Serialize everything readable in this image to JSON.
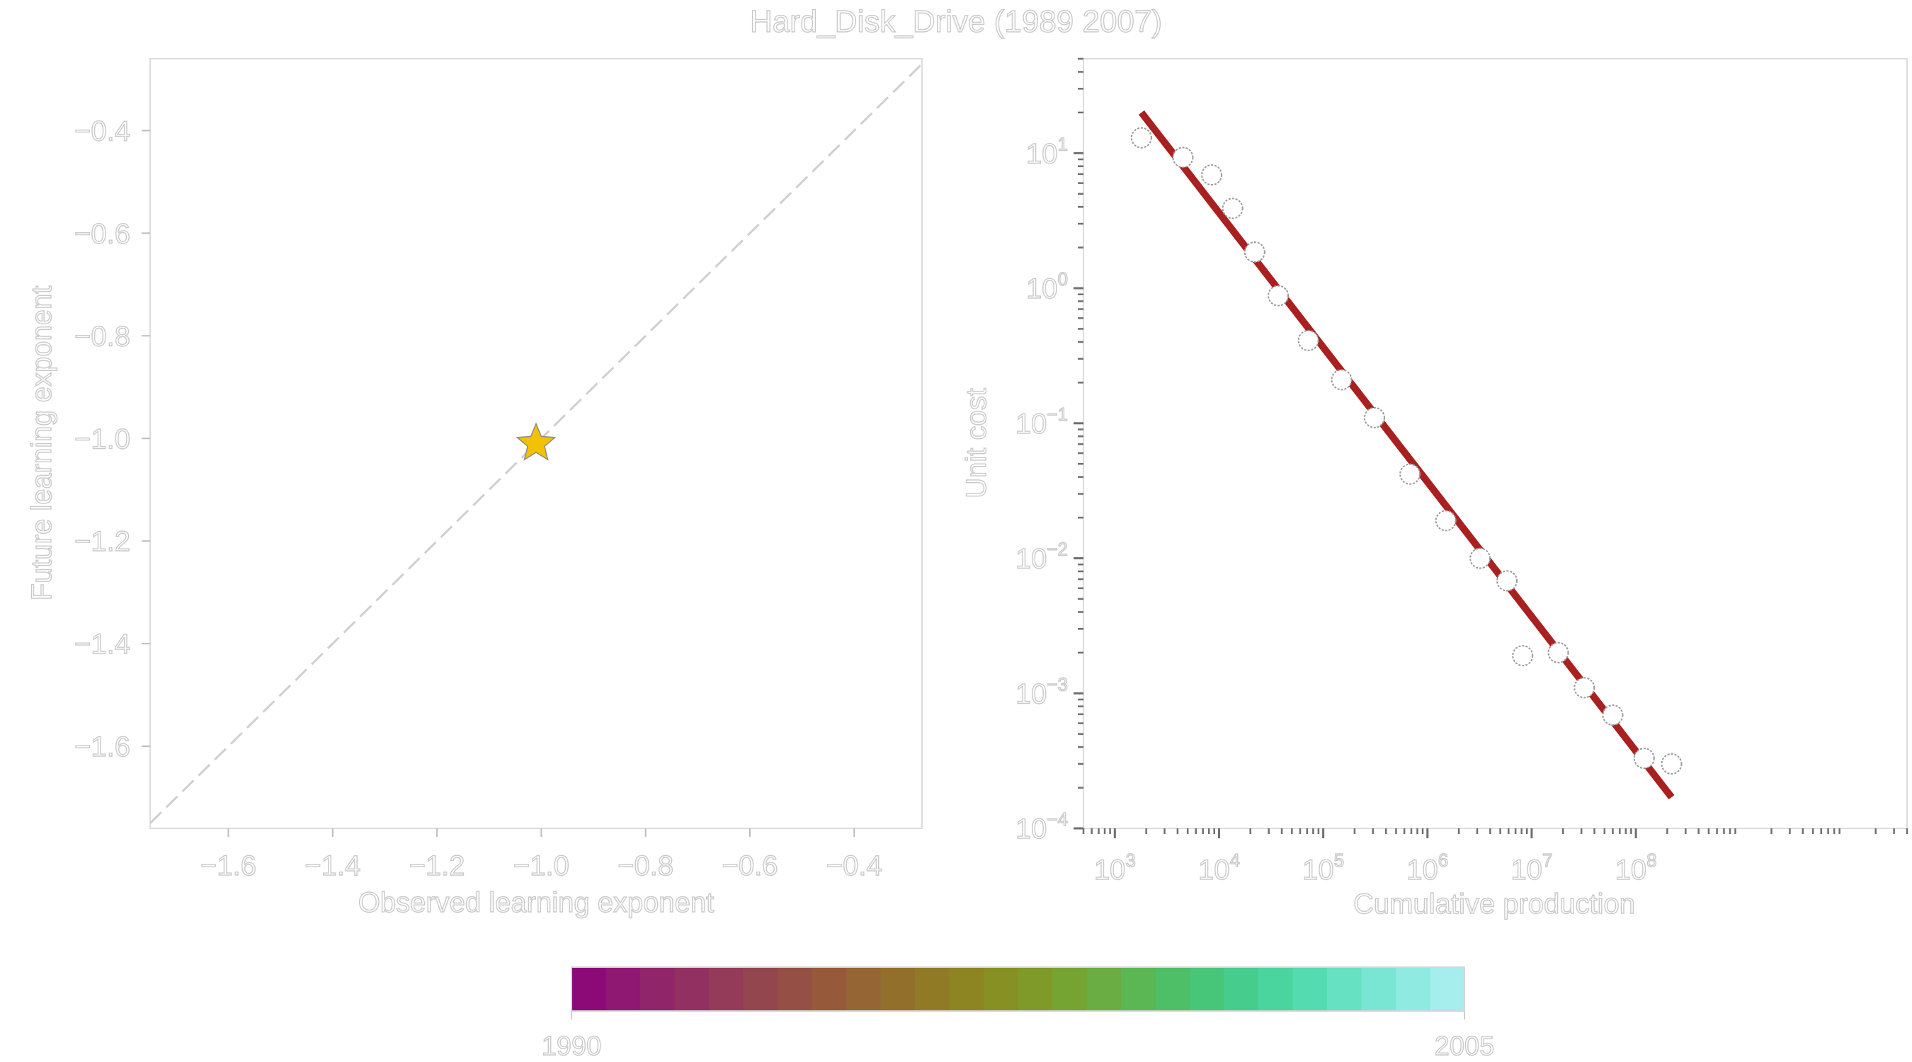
{
  "figure_title": "Hard_Disk_Drive (1989 2007)",
  "chart_data": [
    {
      "type": "scatter",
      "xlabel": "Observed learning exponent",
      "ylabel": "Future learning exponent",
      "xlim": [
        -1.75,
        -0.27
      ],
      "ylim": [
        -1.76,
        -0.26
      ],
      "x_ticks": [
        -1.6,
        -1.4,
        -1.2,
        -1.0,
        -0.8,
        -0.6,
        -0.4
      ],
      "x_tick_labels": [
        "−1.6",
        "−1.4",
        "−1.2",
        "−1.0",
        "−0.8",
        "−0.6",
        "−0.4"
      ],
      "y_ticks": [
        -0.4,
        -0.6,
        -0.8,
        -1.0,
        -1.2,
        -1.4,
        -1.6
      ],
      "y_tick_labels": [
        "−0.4",
        "−0.6",
        "−0.8",
        "−1.0",
        "−1.2",
        "−1.4",
        "−1.6"
      ],
      "reference_line": {
        "style": "dashed",
        "relation": "y = x",
        "color": "#d0d0d0"
      },
      "points": [
        {
          "x": -1.01,
          "y": -1.01,
          "marker": "star",
          "color": "#f2c200"
        }
      ],
      "grid": false
    },
    {
      "type": "scatter",
      "xlabel": "Cumulative production",
      "ylabel": "Unit cost",
      "x_scale": "log",
      "y_scale": "log",
      "xlim": [
        500,
        40000000000
      ],
      "ylim": [
        0.0001,
        50
      ],
      "x_ticks": [
        1000,
        10000,
        100000,
        1000000,
        10000000,
        100000000
      ],
      "x_tick_labels": [
        [
          "10",
          "3"
        ],
        [
          "10",
          "4"
        ],
        [
          "10",
          "5"
        ],
        [
          "10",
          "6"
        ],
        [
          "10",
          "7"
        ],
        [
          "10",
          "8"
        ]
      ],
      "y_ticks": [
        10,
        1,
        0.1,
        0.01,
        0.001,
        0.0001
      ],
      "y_tick_labels": [
        [
          "10",
          "1"
        ],
        [
          "10",
          "0"
        ],
        [
          "10",
          "−1"
        ],
        [
          "10",
          "−2"
        ],
        [
          "10",
          "−3"
        ],
        [
          "10",
          "−4"
        ]
      ],
      "series": [
        {
          "type": "scatter",
          "marker": "open-circle",
          "x": [
            1800,
            4500,
            8500,
            13500,
            22000,
            37000,
            72000,
            150000,
            310000,
            680000,
            1500000,
            3200000,
            5800000,
            8200000,
            18000000,
            32000000,
            60000000,
            120000000,
            220000000
          ],
          "y": [
            13,
            9.3,
            6.9,
            3.9,
            1.85,
            0.88,
            0.41,
            0.21,
            0.11,
            0.042,
            0.019,
            0.01,
            0.0068,
            0.0019,
            0.002,
            0.0011,
            0.00069,
            0.00033,
            0.0003
          ]
        },
        {
          "type": "line",
          "fit": true,
          "color": "#a8201f",
          "x": [
            1800,
            220000000
          ],
          "y": [
            20,
            0.00017
          ]
        }
      ],
      "grid": false
    }
  ],
  "colorbar": {
    "min_label": "1990",
    "max_label": "2005",
    "colors": [
      "#8b0a78",
      "#8e1872",
      "#90256a",
      "#923061",
      "#933b58",
      "#94464f",
      "#954f45",
      "#965a3b",
      "#956533",
      "#936f2c",
      "#907a26",
      "#8c8522",
      "#879022",
      "#7f9a28",
      "#76a433",
      "#69ad43",
      "#5bb654",
      "#4ebe67",
      "#47c67a",
      "#46cd8d",
      "#4ad49e",
      "#55dbb0",
      "#66e1c2",
      "#79e6d3",
      "#8feae2",
      "#a6edee"
    ]
  }
}
